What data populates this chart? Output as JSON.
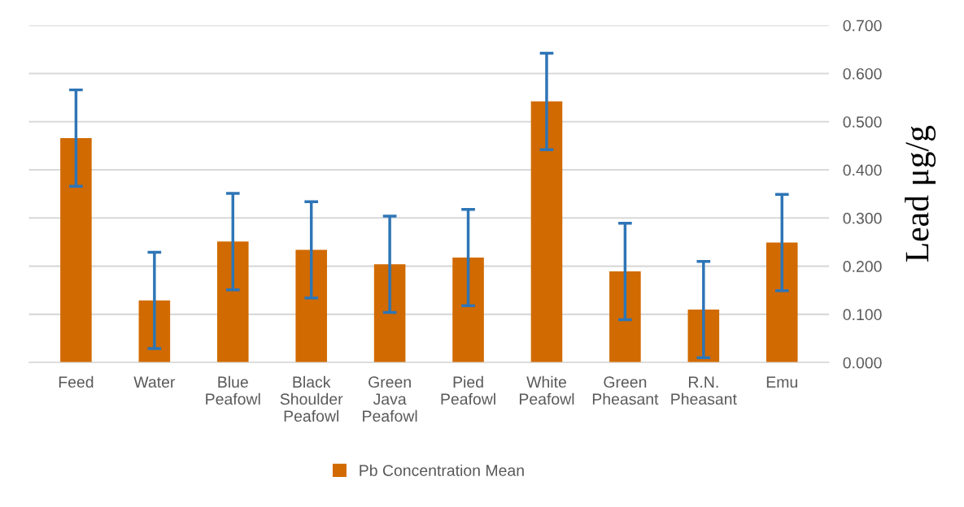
{
  "chart_data": {
    "type": "bar",
    "ylabel": "Lead μg/g",
    "categories": [
      "Feed",
      "Water",
      "Blue\nPeafowl",
      "Black\nShoulder\nPeafowl",
      "Green\nJava\nPeafowl",
      "Pied\nPeafowl",
      "White\nPeafowl",
      "Green\nPheasant",
      "R.N.\nPheasant",
      "Emu"
    ],
    "series": [
      {
        "name": "Pb Concentration Mean",
        "color": "#d16a00",
        "values": [
          0.466,
          0.129,
          0.251,
          0.234,
          0.204,
          0.218,
          0.542,
          0.189,
          0.11,
          0.249
        ],
        "errors": [
          0.1,
          0.1,
          0.1,
          0.1,
          0.1,
          0.1,
          0.1,
          0.1,
          0.1,
          0.1
        ]
      }
    ],
    "ylim": [
      0,
      0.7
    ],
    "yticks": [
      {
        "value": 0,
        "label": "0.000"
      },
      {
        "value": 0.1,
        "label": "0.100"
      },
      {
        "value": 0.2,
        "label": "0.200"
      },
      {
        "value": 0.3,
        "label": "0.300"
      },
      {
        "value": 0.4,
        "label": "0.400"
      },
      {
        "value": 0.5,
        "label": "0.500"
      },
      {
        "value": 0.6,
        "label": "0.600"
      },
      {
        "value": 0.7,
        "label": "0.700"
      }
    ],
    "grid": "y",
    "legend": "bottom"
  }
}
